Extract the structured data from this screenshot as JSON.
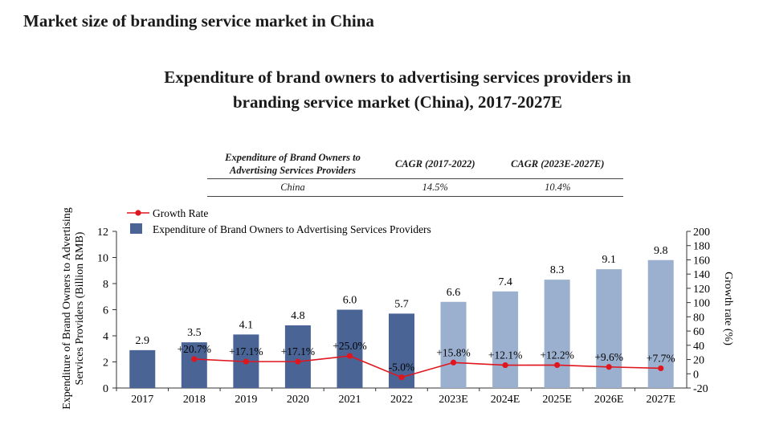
{
  "page": {
    "heading": "Market size of branding service market in China"
  },
  "table": {
    "headers": [
      "Expenditure of Brand Owners to Advertising Services Providers",
      "CAGR (2017-2022)",
      "CAGR (2023E-2027E)"
    ],
    "rows": [
      [
        "China",
        "14.5%",
        "10.4%"
      ]
    ]
  },
  "chart_data": {
    "type": "bar",
    "title_line1": "Expenditure of brand owners to advertising services providers in",
    "title_line2": "branding service market (China), 2017-2027E",
    "categories": [
      "2017",
      "2018",
      "2019",
      "2020",
      "2021",
      "2022",
      "2023E",
      "2024E",
      "2025E",
      "2026E",
      "2027E"
    ],
    "series": [
      {
        "name": "Expenditure of Brand Owners to Advertising Services Providers",
        "type": "bar",
        "axis": "left",
        "values": [
          2.9,
          3.5,
          4.1,
          4.8,
          6.0,
          5.7,
          6.6,
          7.4,
          8.3,
          9.1,
          9.8
        ],
        "labels": [
          "2.9",
          "3.5",
          "4.1",
          "4.8",
          "6.0",
          "5.7",
          "6.6",
          "7.4",
          "8.3",
          "9.1",
          "9.8"
        ],
        "forecast_from_index": 6
      },
      {
        "name": "Growth Rate",
        "type": "line",
        "axis": "right",
        "values": [
          null,
          20.7,
          17.1,
          17.1,
          25.0,
          -5.0,
          15.8,
          12.1,
          12.2,
          9.6,
          7.7
        ],
        "labels": [
          "",
          "+20.7%",
          "+17.1%",
          "+17.1%",
          "+25.0%",
          "-5.0%",
          "+15.8%",
          "+12.1%",
          "+12.2%",
          "+9.6%",
          "+7.7%"
        ]
      }
    ],
    "ylabel_left_line1": "Expenditure of Brand Owners to Advertising",
    "ylabel_left_line2": "Services Providers (Billion RMB)",
    "ylabel_right": "Growth rate (%)",
    "ylim_left": [
      0,
      12
    ],
    "yticks_left": [
      0,
      2,
      4,
      6,
      8,
      10,
      12
    ],
    "ylim_right": [
      -20,
      200
    ],
    "yticks_right": [
      -20,
      0,
      20,
      40,
      60,
      80,
      100,
      120,
      140,
      160,
      180,
      200
    ],
    "legend": "top-left",
    "colors": {
      "bar_actual": "#4a6595",
      "bar_forecast": "#9bb0cf",
      "line": "#e0161e",
      "axis": "#333333"
    }
  }
}
